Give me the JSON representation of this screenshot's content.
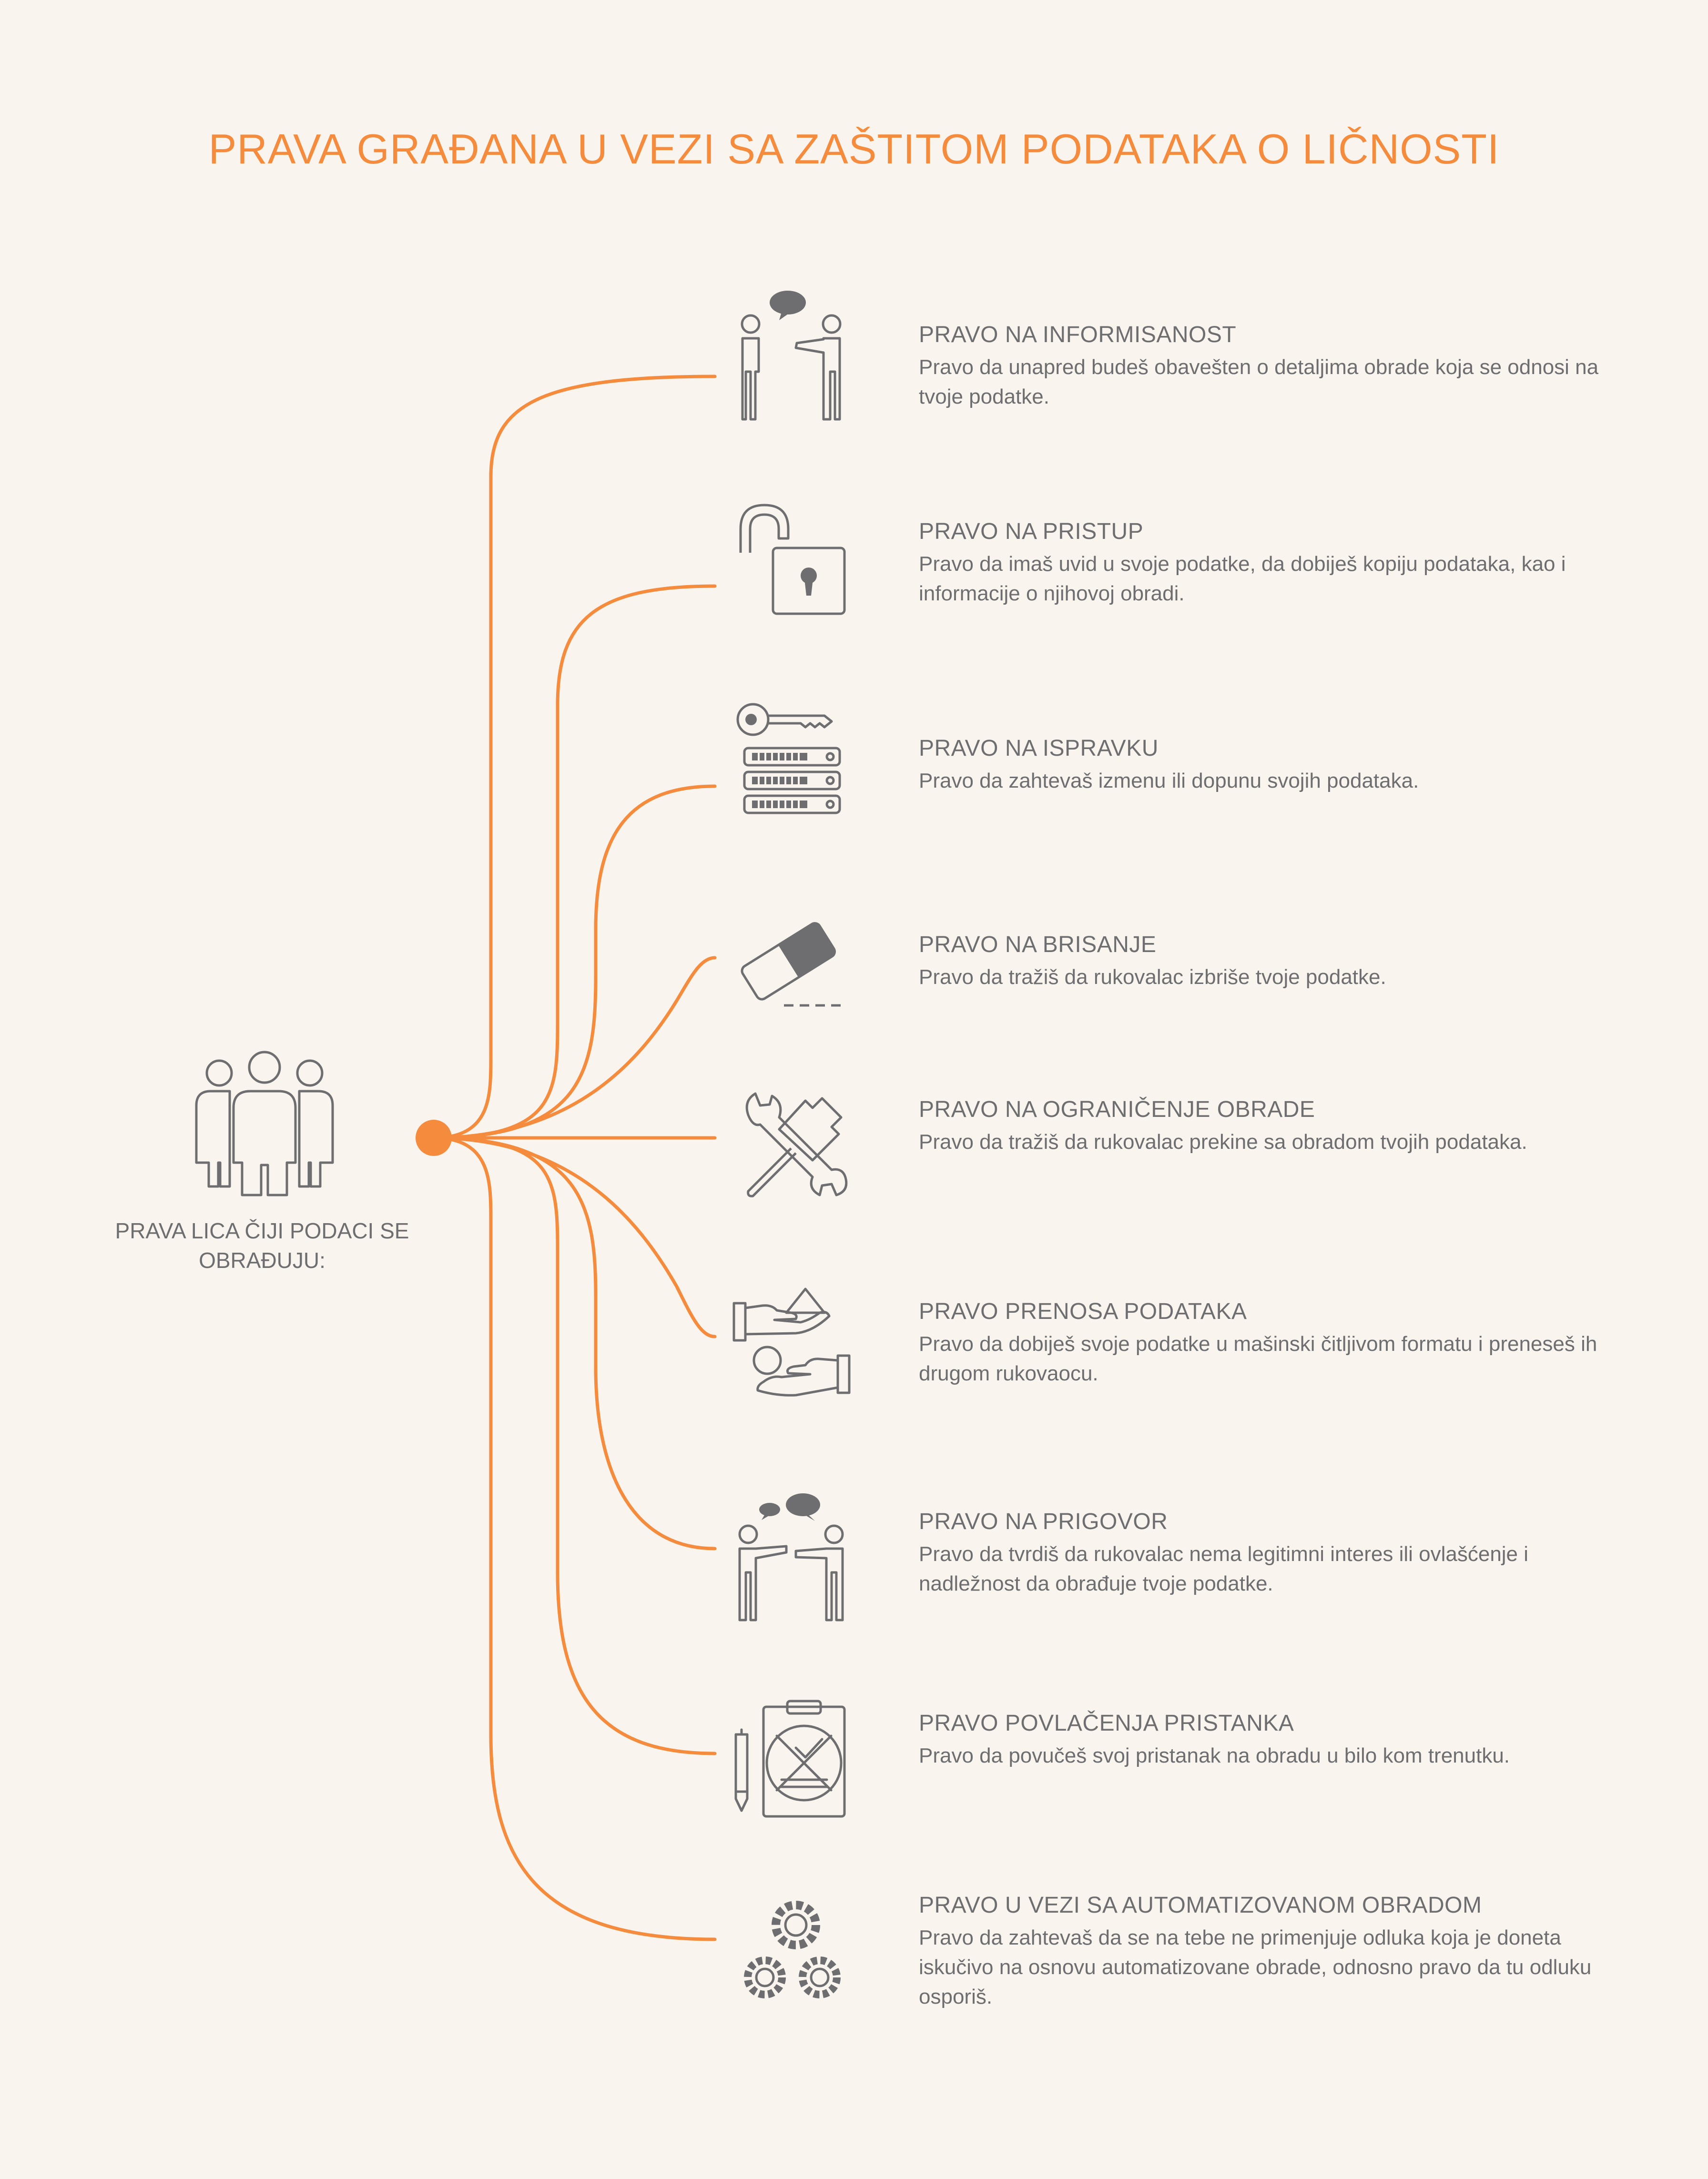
{
  "title": "PRAVA GRAĐANA U VEZI SA ZAŠTITOM PODATAKA O LIČNOSTI",
  "subject": {
    "label": "PRAVA LICA ČIJI PODACI SE OBRAĐUJU:",
    "icon": "group-of-people-icon"
  },
  "colors": {
    "accent": "#f58b3d",
    "text": "#6e6e70",
    "icon": "#6e6e70",
    "background": "#f9f4ee"
  },
  "rights": [
    {
      "title": "PRAVO NA INFORMISANOST",
      "description": "Pravo da unapred budeš obavešten o detaljima obrade koja se odnosi na tvoje podatke.",
      "icon": "two-people-talking-icon"
    },
    {
      "title": "PRAVO NA PRISTUP",
      "description": "Pravo da imaš uvid u svoje podatke, da dobiješ kopiju podataka, kao i informacije o njihovoj obradi.",
      "icon": "open-padlock-icon"
    },
    {
      "title": "PRAVO NA ISPRAVKU",
      "description": "Pravo da zahtevaš izmenu ili dopunu svojih podataka.",
      "icon": "key-server-icon"
    },
    {
      "title": "PRAVO NA BRISANJE",
      "description": "Pravo da tražiš da rukovalac izbriše tvoje podatke.",
      "icon": "eraser-icon"
    },
    {
      "title": "PRAVO NA OGRANIČENJE OBRADE",
      "description": "Pravo da tražiš da rukovalac prekine sa obradom tvojih podataka.",
      "icon": "wrench-hammer-icon"
    },
    {
      "title": "PRAVO PRENOSA PODATAKA",
      "description": "Pravo da dobiješ svoje podatke u mašinski čitljivom formatu i preneseš ih drugom rukovaocu.",
      "icon": "hands-transfer-icon"
    },
    {
      "title": "PRAVO NA PRIGOVOR",
      "description": "Pravo da tvrdiš da rukovalac nema legitimni interes ili ovlašćenje i nadležnost da obrađuje tvoje podatke.",
      "icon": "two-people-arguing-icon"
    },
    {
      "title": "PRAVO POVLAČENJA PRISTANKA",
      "description": "Pravo da povučeš svoj pristanak na obradu u bilo kom trenutku.",
      "icon": "clipboard-cancel-icon"
    },
    {
      "title": "PRAVO U VEZI SA AUTOMATIZOVANOM OBRADOM",
      "description": "Pravo da zahtevaš da se na tebe ne primenjuje odluka koja je doneta isključivo na osnovu automatizovane obrade, odnosno pravo da tu odluku ospoRiš.",
      "icon": "gears-icon"
    }
  ]
}
